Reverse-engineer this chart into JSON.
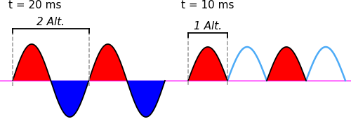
{
  "bg_color": "#ffffff",
  "magenta_line_color": "#ff00ff",
  "left_title": "t = 20 ms",
  "left_subtitle": "2 Alt.",
  "right_title": "t = 10 ms",
  "right_subtitle": "1 Alt.",
  "red_color": "#ff0000",
  "blue_color": "#0000ff",
  "cyan_color": "#4dabf7",
  "black_color": "#000000",
  "dashed_color": "#999999",
  "fig_w": 5.0,
  "fig_h": 1.77,
  "dpi": 100
}
